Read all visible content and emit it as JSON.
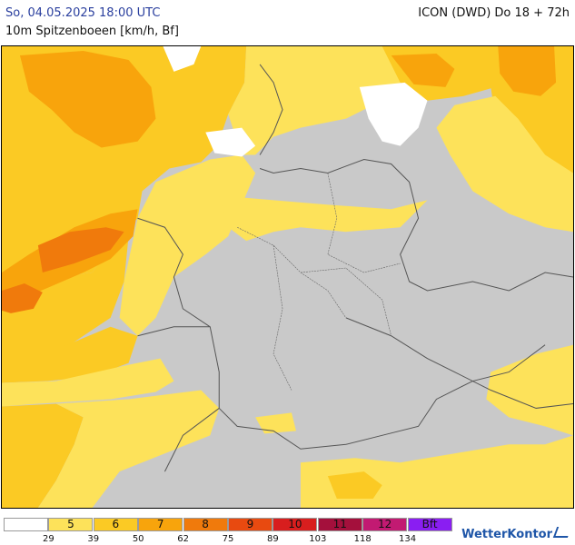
{
  "header": {
    "valid_time": "So, 04.05.2025 18:00 UTC",
    "model_run": "ICON (DWD) Do 18 + 72h",
    "parameter": "10m Spitzenboeen [km/h, Bf]"
  },
  "map": {
    "background_color": "#c9c9c9",
    "border_color": "#555555",
    "water_color": "#ffffff"
  },
  "legend": {
    "classes": [
      {
        "bf": "",
        "color": "#ffffff"
      },
      {
        "bf": "5",
        "color": "#fde25a"
      },
      {
        "bf": "6",
        "color": "#fbca24"
      },
      {
        "bf": "7",
        "color": "#f8a40c"
      },
      {
        "bf": "8",
        "color": "#f07a0c"
      },
      {
        "bf": "9",
        "color": "#e84a10"
      },
      {
        "bf": "10",
        "color": "#d81e1e"
      },
      {
        "bf": "11",
        "color": "#a4103c"
      },
      {
        "bf": "12",
        "color": "#c21a72"
      },
      {
        "bf": "Bft",
        "color": "#8a1ef2"
      }
    ],
    "thresholds_kmh": [
      "29",
      "39",
      "50",
      "62",
      "75",
      "89",
      "103",
      "118",
      "134"
    ]
  },
  "branding": {
    "name": "WetterKontor",
    "icon": "wetterkontor-logo-icon"
  }
}
